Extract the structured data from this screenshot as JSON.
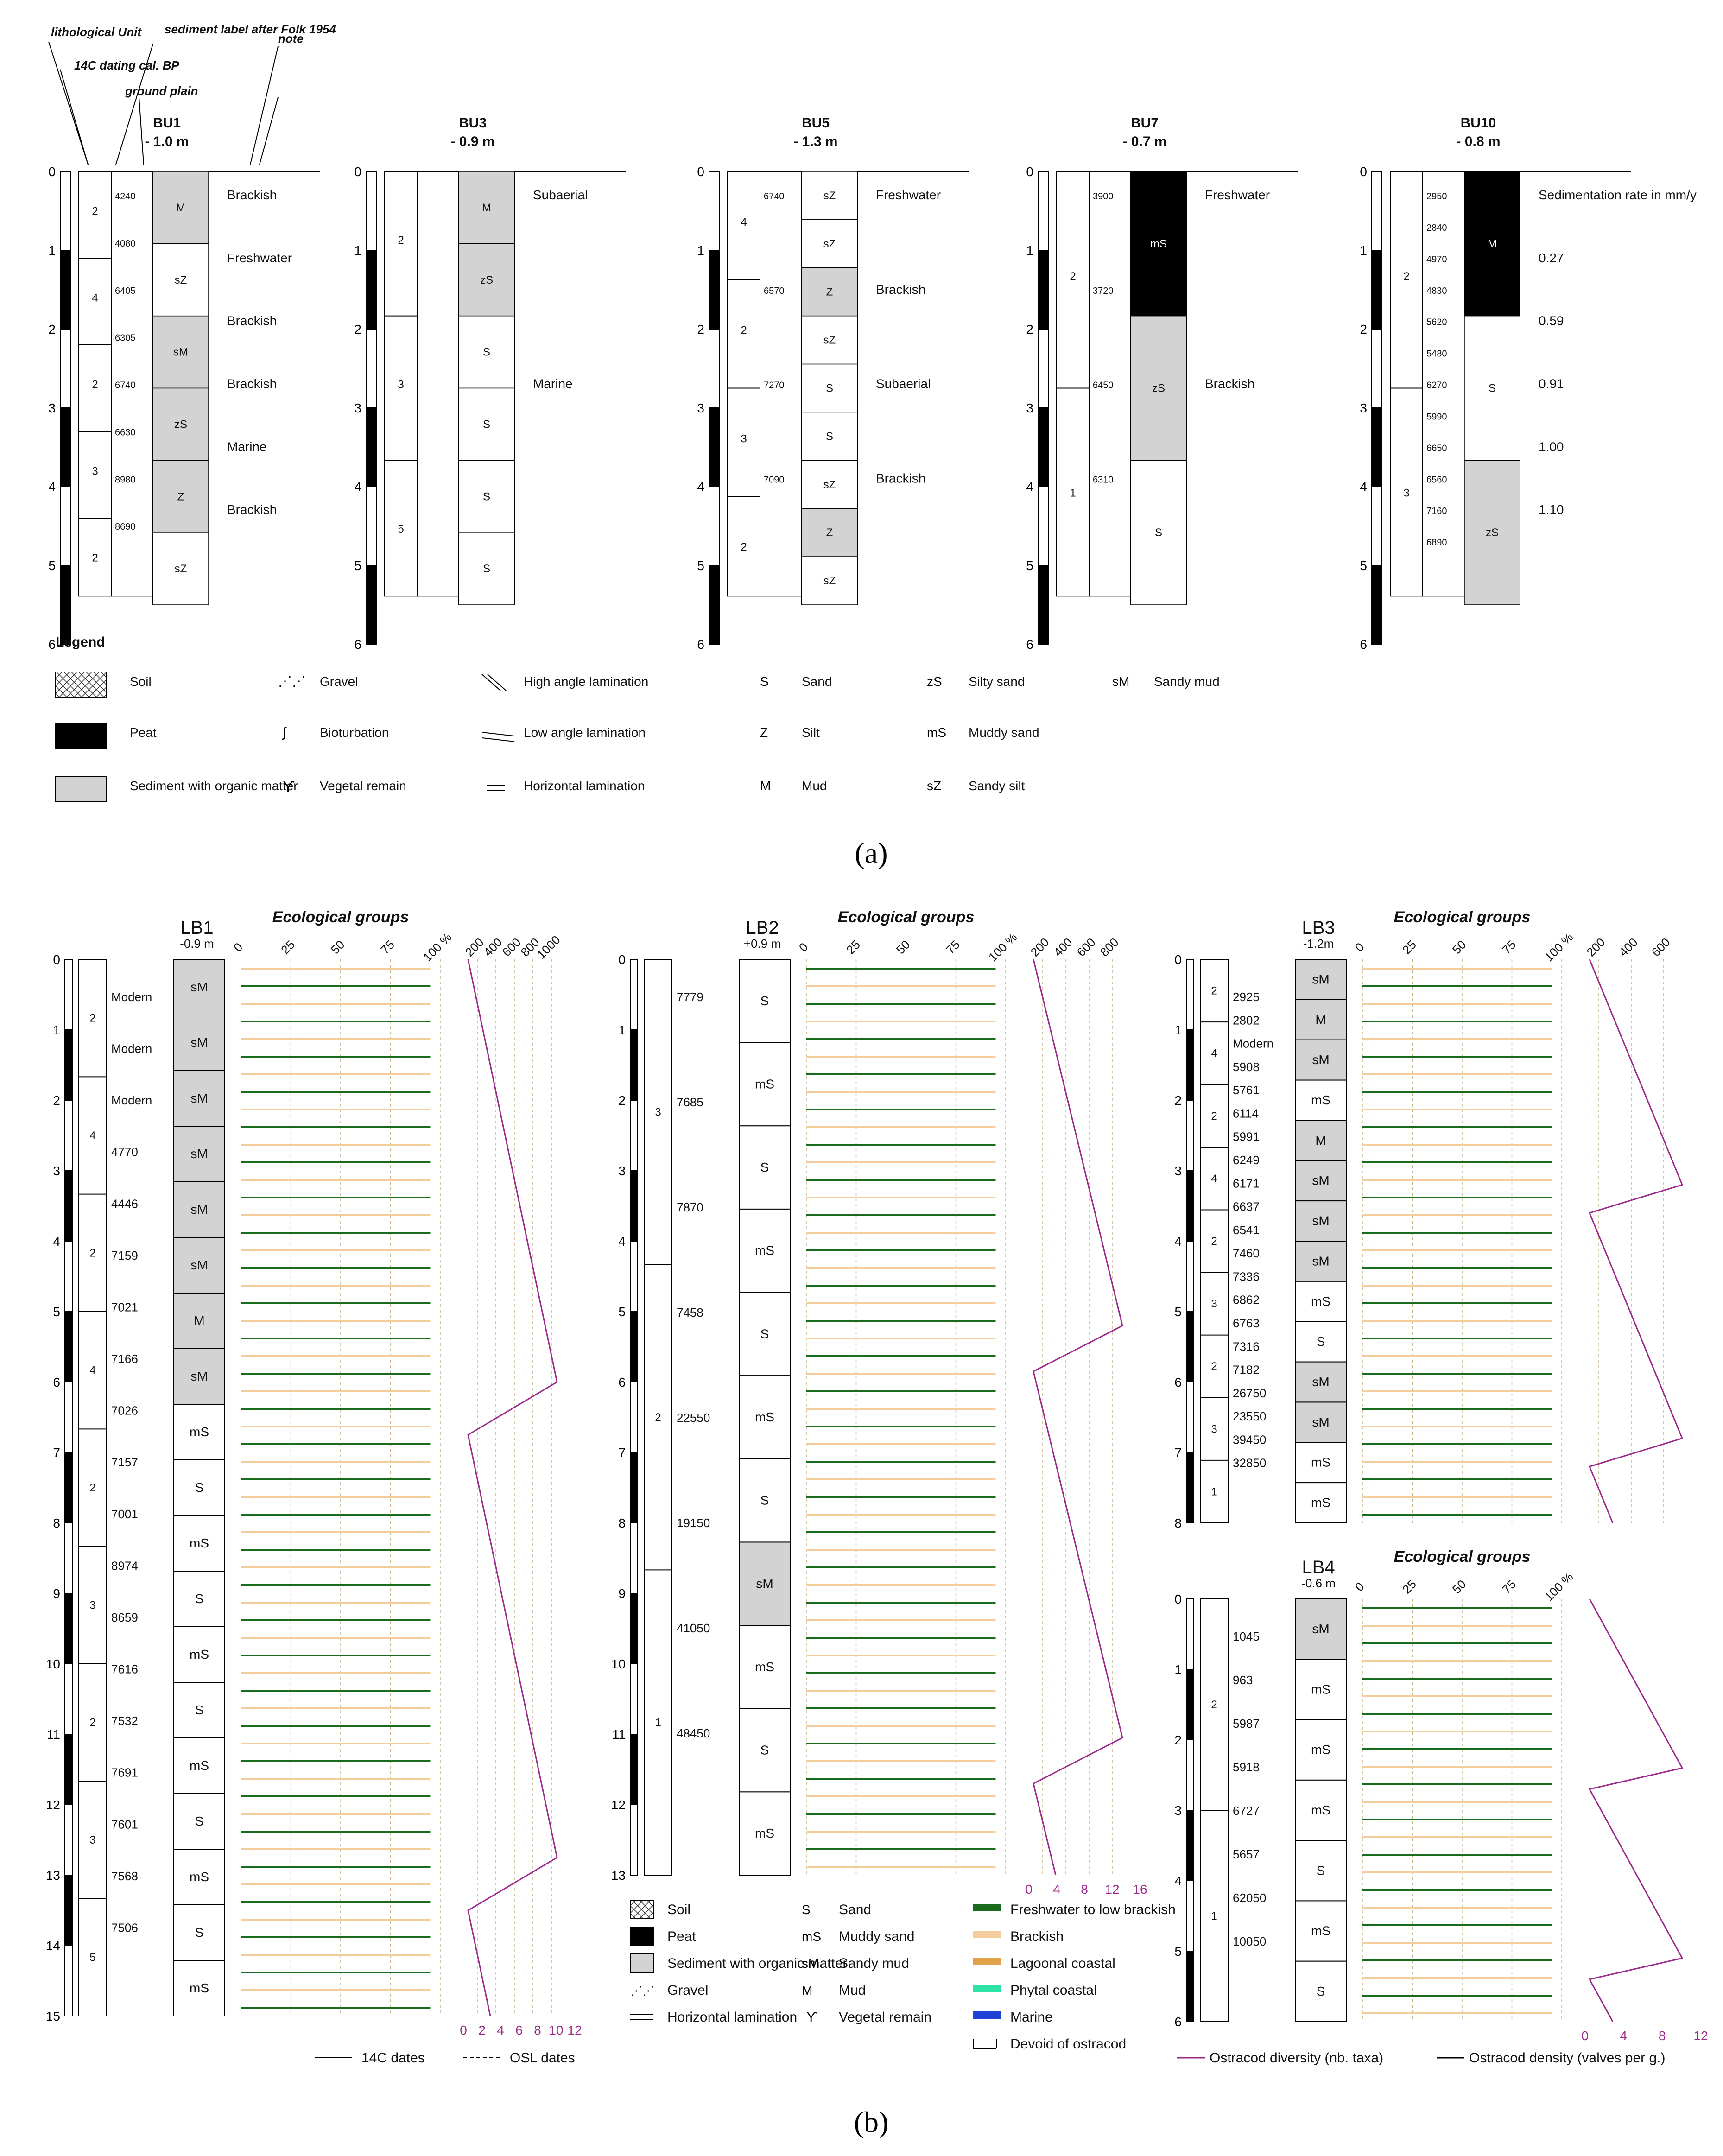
{
  "part_a": {
    "header_labels": {
      "lithological_unit": "lithological Unit",
      "sediment_label": "sediment label after Folk 1954",
      "note": "note",
      "c14": "14C dating cal. BP",
      "ground_plain": "ground plain"
    },
    "cores": [
      {
        "name": "BU1",
        "depth": "- 1.0 m",
        "units": [
          "2",
          "4",
          "2",
          "3",
          "2"
        ],
        "dates": [
          "4240",
          "4080",
          "6405",
          "6305",
          "6740",
          "6630",
          "8980",
          "8690"
        ],
        "labels": [
          "M",
          "sZ",
          "sM",
          "zS",
          "Z",
          "sZ"
        ],
        "notes": [
          "Brackish",
          "Freshwater",
          "Brackish",
          "Brackish",
          "Marine",
          "Brackish"
        ]
      },
      {
        "name": "BU3",
        "depth": "- 0.9 m",
        "units": [
          "2",
          "3",
          "5"
        ],
        "dates": [],
        "labels": [
          "M",
          "zS",
          "S",
          "S",
          "S",
          "S"
        ],
        "notes": [
          "Subaerial",
          "Marine"
        ]
      },
      {
        "name": "BU5",
        "depth": "- 1.3 m",
        "units": [
          "4",
          "2",
          "3",
          "2"
        ],
        "dates": [
          "6740",
          "6570",
          "7270",
          "7090"
        ],
        "labels": [
          "sZ",
          "sZ",
          "Z",
          "sZ",
          "S",
          "S",
          "sZ",
          "Z",
          "sZ"
        ],
        "notes": [
          "Freshwater",
          "Brackish",
          "Subaerial",
          "Brackish"
        ]
      },
      {
        "name": "BU7",
        "depth": "- 0.7 m",
        "units": [
          "2",
          "1"
        ],
        "dates": [
          "3900",
          "3720",
          "6450",
          "6310"
        ],
        "labels": [
          "mS",
          "zS",
          "S"
        ],
        "notes": [
          "Freshwater",
          "Brackish"
        ]
      },
      {
        "name": "BU10",
        "depth": "- 0.8 m",
        "units": [
          "2",
          "3"
        ],
        "dates": [
          "2950",
          "2840",
          "4970",
          "4830",
          "5620",
          "5480",
          "6270",
          "5990",
          "6650",
          "6560",
          "7160",
          "6890"
        ],
        "labels": [
          "M",
          "S",
          "zS"
        ],
        "notes": [
          "Sedimentation rate in mm/y",
          "0.27",
          "0.59",
          "0.91",
          "1.00",
          "1.10"
        ]
      }
    ],
    "legend_title": "Legend",
    "legend": [
      {
        "sym": "soil",
        "label": "Soil"
      },
      {
        "sym": "peat",
        "label": "Peat"
      },
      {
        "sym": "org",
        "label": "Sediment with organic matter"
      },
      {
        "sym": "gravel",
        "label": "Gravel"
      },
      {
        "sym": "bioturb",
        "label": "Bioturbation"
      },
      {
        "sym": "veg",
        "label": "Vegetal remain"
      },
      {
        "sym": "hal",
        "label": "High angle lamination"
      },
      {
        "sym": "lal",
        "label": "Low angle lamination"
      },
      {
        "sym": "hl",
        "label": "Horizontal lamination"
      },
      {
        "code": "S",
        "label": "Sand"
      },
      {
        "code": "Z",
        "label": "Silt"
      },
      {
        "code": "M",
        "label": "Mud"
      },
      {
        "code": "zS",
        "label": "Silty sand"
      },
      {
        "code": "mS",
        "label": "Muddy sand"
      },
      {
        "code": "sZ",
        "label": "Sandy silt"
      },
      {
        "code": "sM",
        "label": "Sandy mud"
      }
    ],
    "caption": "(a)"
  },
  "part_b": {
    "eco_title": "Ecological groups",
    "pct_ticks": [
      "0",
      "25",
      "50",
      "75",
      "100 %"
    ],
    "cores": [
      {
        "name": "LB1",
        "depth": "-0.9 m",
        "units": [
          "2",
          "4",
          "2",
          "4",
          "2",
          "3",
          "2",
          "3",
          "5"
        ],
        "dates": [
          "Modern",
          "Modern",
          "Modern",
          "4770",
          "4446",
          "7159",
          "7021",
          "7166",
          "7026",
          "7157",
          "7001",
          "8974",
          "8659",
          "7616",
          "7532",
          "7691",
          "7601",
          "7568",
          "7506"
        ],
        "labels": [
          "sM",
          "sM",
          "sM",
          "sM",
          "sM",
          "sM",
          "M",
          "sM",
          "mS",
          "S",
          "mS",
          "S",
          "mS",
          "S",
          "mS",
          "S",
          "mS",
          "S",
          "mS"
        ],
        "density_ticks": [
          "200",
          "400",
          "600",
          "800",
          "1000"
        ],
        "diversity_ticks": [
          "0",
          "2",
          "4",
          "6",
          "8",
          "10",
          "12"
        ]
      },
      {
        "name": "LB2",
        "depth": "+0.9 m",
        "units": [
          "3",
          "2",
          "1"
        ],
        "dates": [
          "7779",
          "7685",
          "7870",
          "7458",
          "22550",
          "19150",
          "41050",
          "48450"
        ],
        "labels": [
          "S",
          "mS",
          "S",
          "mS",
          "S",
          "mS",
          "S",
          "sM",
          "mS",
          "S",
          "mS"
        ],
        "density_ticks": [
          "200",
          "400",
          "600",
          "800"
        ],
        "diversity_ticks": [
          "0",
          "4",
          "8",
          "12",
          "16"
        ]
      },
      {
        "name": "LB3",
        "depth": "-1.2m",
        "units": [
          "2",
          "4",
          "2",
          "4",
          "2",
          "3",
          "2",
          "3",
          "1"
        ],
        "dates": [
          "2925",
          "2802",
          "Modern",
          "5908",
          "5761",
          "6114",
          "5991",
          "6249",
          "6171",
          "6637",
          "6541",
          "7460",
          "7336",
          "6862",
          "6763",
          "7316",
          "7182",
          "26750",
          "23550",
          "39450",
          "32850"
        ],
        "labels": [
          "sM",
          "M",
          "sM",
          "mS",
          "M",
          "sM",
          "sM",
          "sM",
          "mS",
          "S",
          "sM",
          "sM",
          "mS",
          "mS"
        ],
        "density_ticks": [
          "200",
          "400",
          "600"
        ],
        "diversity_ticks": []
      },
      {
        "name": "LB4",
        "depth": "-0.6 m",
        "units": [
          "2",
          "1"
        ],
        "dates": [
          "1045",
          "963",
          "5987",
          "5918",
          "6727",
          "5657",
          "62050",
          "10050"
        ],
        "labels": [
          "sM",
          "mS",
          "mS",
          "mS",
          "S",
          "mS",
          "S"
        ],
        "density_ticks": [],
        "diversity_ticks": [
          "0",
          "4",
          "8",
          "12"
        ]
      }
    ],
    "legend": [
      {
        "sym": "soil",
        "label": "Soil"
      },
      {
        "sym": "peat",
        "label": "Peat"
      },
      {
        "sym": "org",
        "label": "Sediment with organic matter"
      },
      {
        "sym": "gravel",
        "label": "Gravel"
      },
      {
        "sym": "hl",
        "label": "Horizontal lamination"
      },
      {
        "code": "S",
        "label": "Sand"
      },
      {
        "code": "mS",
        "label": "Muddy sand"
      },
      {
        "code": "sM",
        "label": "Sandy mud"
      },
      {
        "code": "M",
        "label": "Mud"
      },
      {
        "sym": "veg",
        "label": "Vegetal remain"
      },
      {
        "color": "#1a6b1e",
        "label": "Freshwater to low brackish"
      },
      {
        "color": "#f3cd9c",
        "label": "Brackish"
      },
      {
        "color": "#e3a24a",
        "label": "Lagoonal coastal"
      },
      {
        "color": "#2fe3a6",
        "label": "Phytal coastal"
      },
      {
        "color": "#2041d6",
        "label": "Marine"
      },
      {
        "sym": "devoid",
        "label": "Devoid of ostracod"
      }
    ],
    "date_legend": {
      "c14": "14C dates",
      "osl": "OSL dates"
    },
    "ostracod_legend": {
      "diversity": "Ostracod diversity (nb. taxa)",
      "density": "Ostracod density (valves per g.)"
    },
    "colors": {
      "diversity": "#9b2a8a",
      "density": "#000000"
    },
    "caption": "(b)"
  }
}
